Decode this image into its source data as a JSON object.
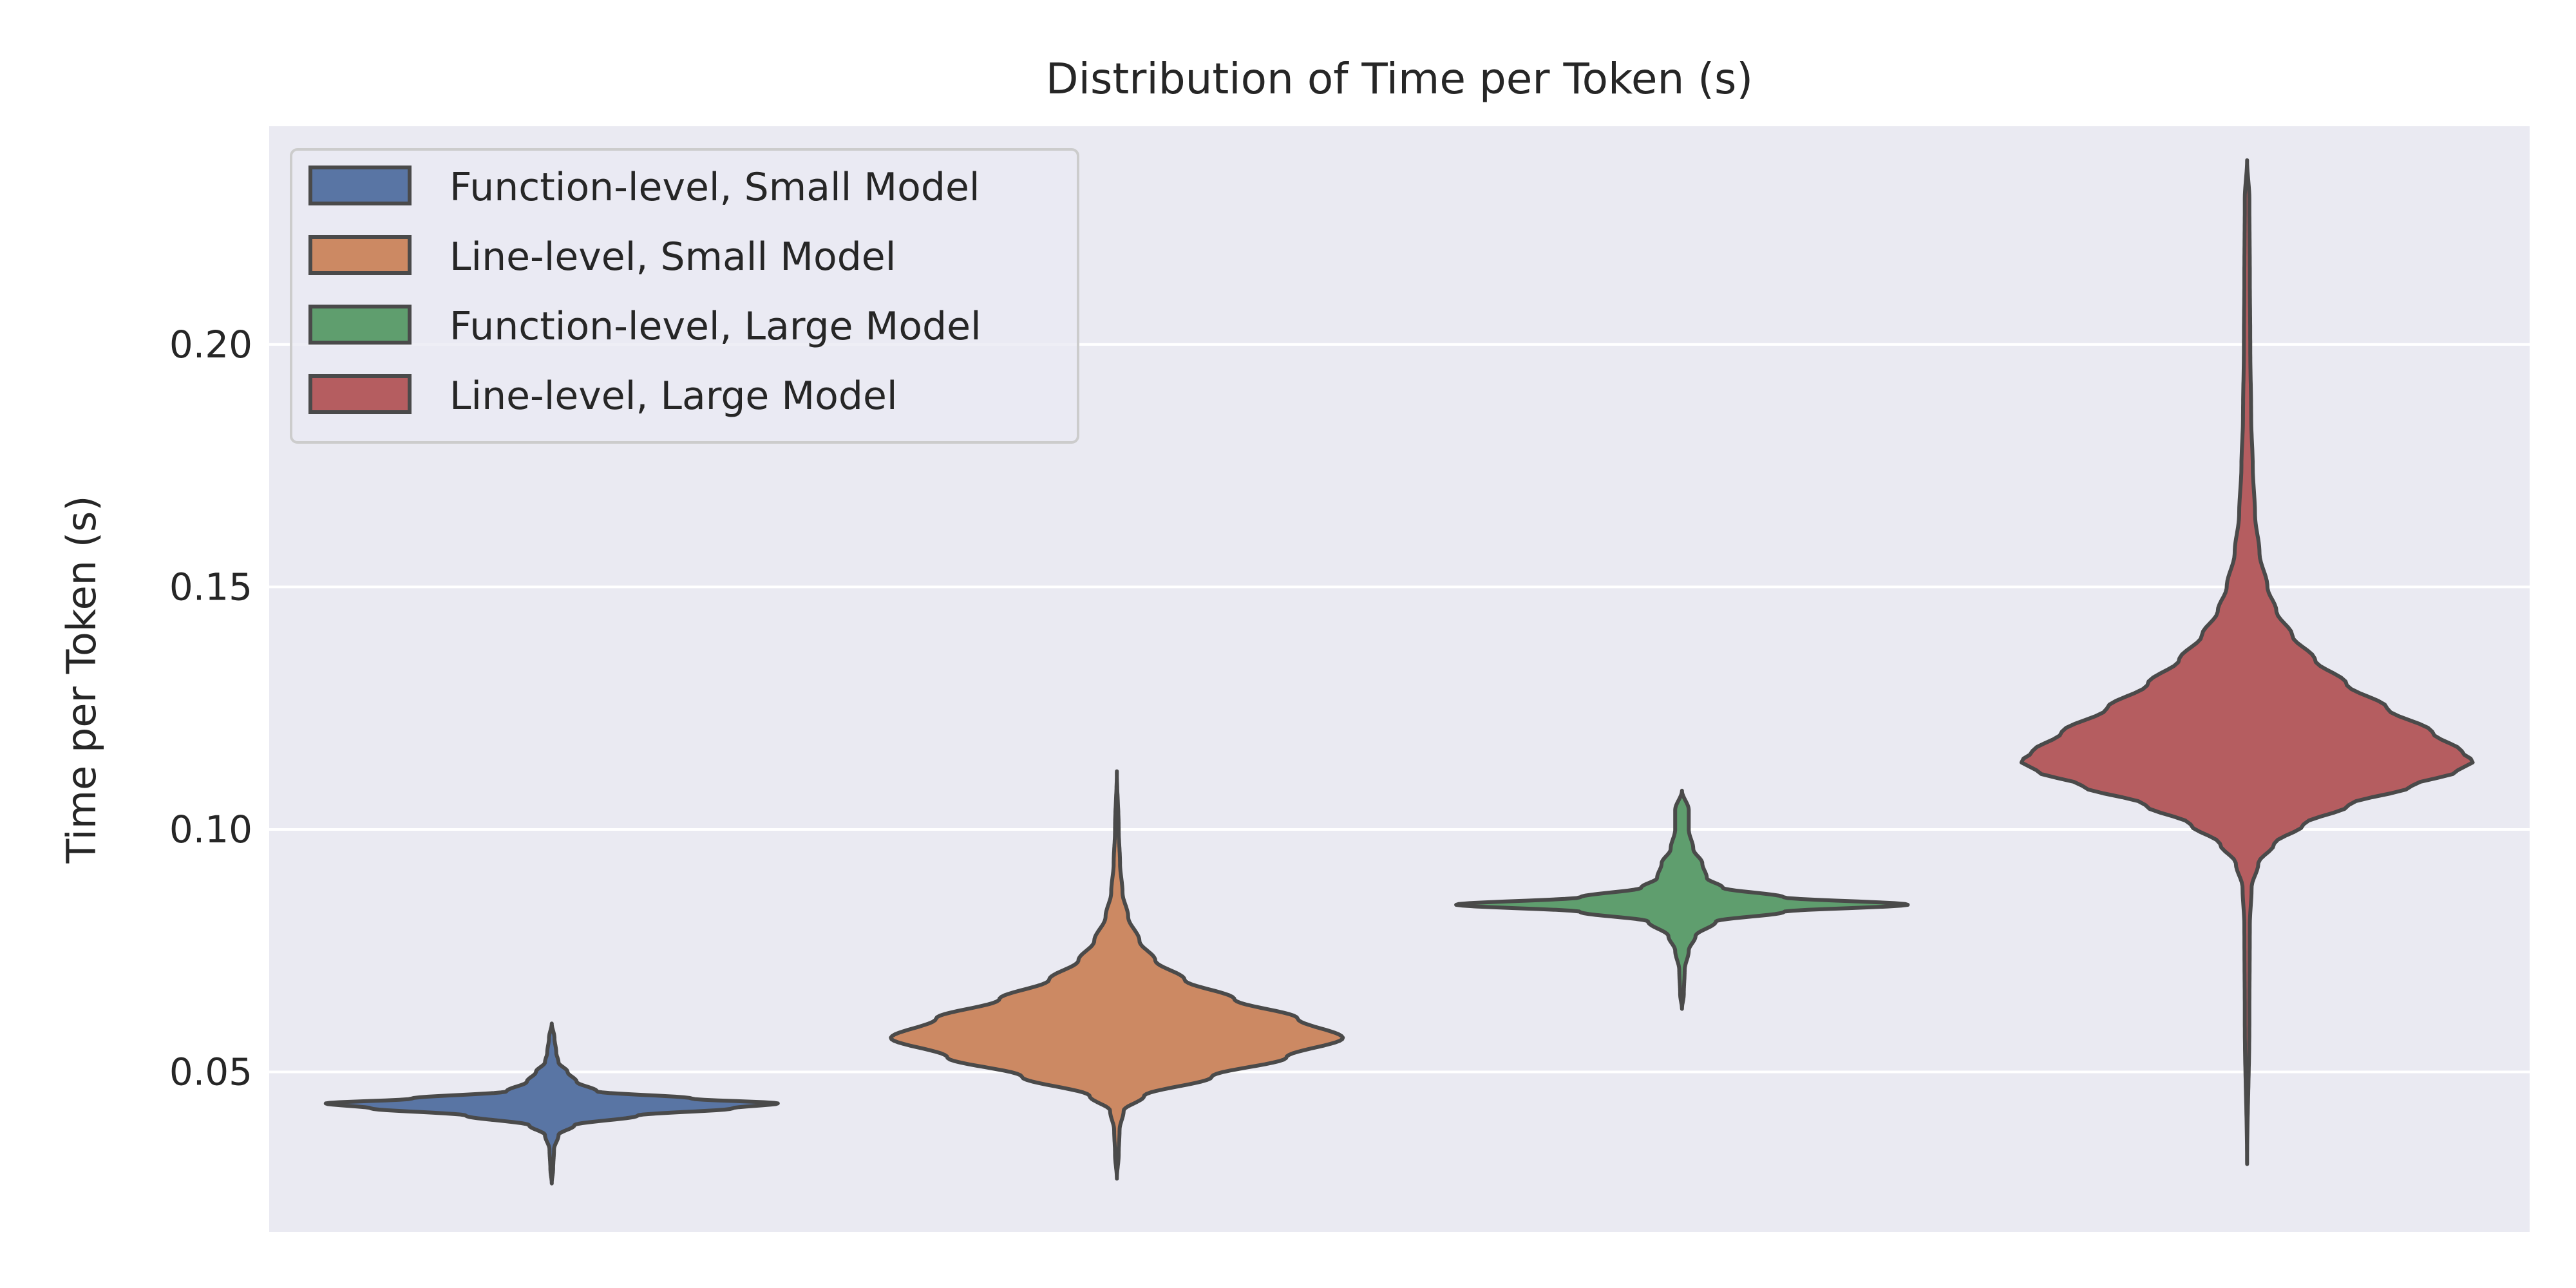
{
  "chart_data": {
    "type": "violin",
    "title": "Distribution of Time per Token (s)",
    "ylabel": "Time per Token (s)",
    "xlabel": "",
    "ylim": [
      0.017,
      0.245
    ],
    "yticks": [
      0.05,
      0.1,
      0.15,
      0.2
    ],
    "ytick_labels": [
      "0.05",
      "0.10",
      "0.15",
      "0.20"
    ],
    "grid": true,
    "legend_position": "top-left",
    "background": "#eaeaf2",
    "grid_color": "#ffffff",
    "outline_color": "#4a4a4a",
    "series": [
      {
        "name": "Function-level, Small Model",
        "color": "#5975a4",
        "min": 0.027,
        "max": 0.06,
        "peak": 0.0435,
        "profile": [
          [
            0.027,
            0.0
          ],
          [
            0.03,
            0.006
          ],
          [
            0.034,
            0.01
          ],
          [
            0.037,
            0.03
          ],
          [
            0.039,
            0.1
          ],
          [
            0.041,
            0.38
          ],
          [
            0.0425,
            0.8
          ],
          [
            0.0435,
            1.0
          ],
          [
            0.0445,
            0.62
          ],
          [
            0.046,
            0.2
          ],
          [
            0.048,
            0.11
          ],
          [
            0.05,
            0.07
          ],
          [
            0.052,
            0.03
          ],
          [
            0.054,
            0.02
          ],
          [
            0.057,
            0.012
          ],
          [
            0.06,
            0.0
          ]
        ]
      },
      {
        "name": "Line-level, Small Model",
        "color": "#cc8963",
        "min": 0.028,
        "max": 0.112,
        "peak": 0.057,
        "profile": [
          [
            0.028,
            0.0
          ],
          [
            0.033,
            0.008
          ],
          [
            0.038,
            0.012
          ],
          [
            0.042,
            0.03
          ],
          [
            0.045,
            0.12
          ],
          [
            0.049,
            0.42
          ],
          [
            0.053,
            0.75
          ],
          [
            0.057,
            1.0
          ],
          [
            0.061,
            0.8
          ],
          [
            0.065,
            0.52
          ],
          [
            0.069,
            0.3
          ],
          [
            0.073,
            0.17
          ],
          [
            0.077,
            0.1
          ],
          [
            0.082,
            0.05
          ],
          [
            0.087,
            0.025
          ],
          [
            0.093,
            0.014
          ],
          [
            0.1,
            0.008
          ],
          [
            0.112,
            0.0
          ]
        ]
      },
      {
        "name": "Function-level, Large Model",
        "color": "#5f9e6e",
        "min": 0.063,
        "max": 0.108,
        "peak": 0.0845,
        "profile": [
          [
            0.063,
            0.0
          ],
          [
            0.066,
            0.008
          ],
          [
            0.071,
            0.012
          ],
          [
            0.075,
            0.03
          ],
          [
            0.078,
            0.06
          ],
          [
            0.081,
            0.15
          ],
          [
            0.083,
            0.45
          ],
          [
            0.0845,
            1.0
          ],
          [
            0.086,
            0.45
          ],
          [
            0.088,
            0.18
          ],
          [
            0.09,
            0.11
          ],
          [
            0.093,
            0.09
          ],
          [
            0.096,
            0.05
          ],
          [
            0.1,
            0.03
          ],
          [
            0.104,
            0.03
          ],
          [
            0.108,
            0.0
          ]
        ]
      },
      {
        "name": "Line-level, Large Model",
        "color": "#b55d60",
        "min": 0.031,
        "max": 0.238,
        "peak": 0.114,
        "profile": [
          [
            0.031,
            0.0
          ],
          [
            0.06,
            0.01
          ],
          [
            0.08,
            0.012
          ],
          [
            0.088,
            0.02
          ],
          [
            0.093,
            0.05
          ],
          [
            0.097,
            0.12
          ],
          [
            0.101,
            0.25
          ],
          [
            0.105,
            0.45
          ],
          [
            0.109,
            0.73
          ],
          [
            0.112,
            0.93
          ],
          [
            0.114,
            1.0
          ],
          [
            0.116,
            0.95
          ],
          [
            0.12,
            0.82
          ],
          [
            0.125,
            0.62
          ],
          [
            0.13,
            0.44
          ],
          [
            0.135,
            0.3
          ],
          [
            0.14,
            0.2
          ],
          [
            0.145,
            0.13
          ],
          [
            0.15,
            0.09
          ],
          [
            0.157,
            0.055
          ],
          [
            0.165,
            0.035
          ],
          [
            0.175,
            0.025
          ],
          [
            0.185,
            0.018
          ],
          [
            0.2,
            0.014
          ],
          [
            0.215,
            0.012
          ],
          [
            0.23,
            0.01
          ],
          [
            0.238,
            0.0
          ]
        ]
      }
    ]
  }
}
